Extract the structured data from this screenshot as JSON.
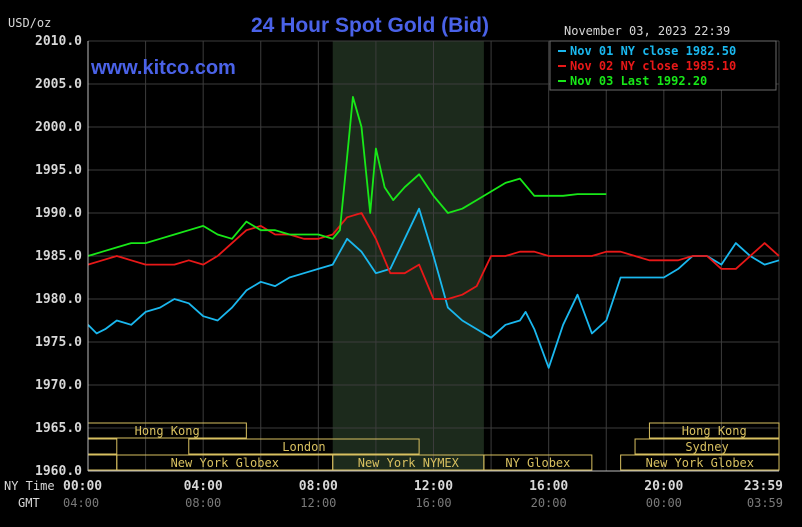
{
  "chart_data": {
    "type": "line",
    "title": "24 Hour Spot Gold (Bid)",
    "watermark": "www.kitco.com",
    "timestamp": "November 03, 2023 22:39",
    "ylabel": "USD/oz",
    "ylim": [
      1960,
      2010
    ],
    "xlim_hours": [
      0,
      24
    ],
    "y_ticks": [
      "2010.0",
      "2005.0",
      "2000.0",
      "1995.0",
      "1990.0",
      "1985.0",
      "1980.0",
      "1975.0",
      "1970.0",
      "1965.0",
      "1960.0"
    ],
    "x_tick_row_labels": [
      "NY Time",
      "GMT"
    ],
    "x_ticks_ny": [
      "00:00",
      "04:00",
      "08:00",
      "12:00",
      "16:00",
      "20:00",
      "23:59"
    ],
    "x_ticks_gmt": [
      "04:00",
      "08:00",
      "12:00",
      "16:00",
      "20:00",
      "00:00",
      "03:59"
    ],
    "grid": true,
    "shaded_range_hours": [
      8.5,
      13.75
    ],
    "legend_position": "top-right",
    "colors": {
      "background": "#000000",
      "grid": "#3c3c3c",
      "shade": "#1c2a1c",
      "title": "#4a62e8",
      "axis_text": "#d8d8d8",
      "session": "#d8c060"
    },
    "series": [
      {
        "name": "Nov 01 NY close 1982.50",
        "color": "#1ab8ef",
        "x": [
          0,
          0.3,
          0.6,
          1,
          1.5,
          2,
          2.5,
          3,
          3.5,
          4,
          4.5,
          5,
          5.5,
          6,
          6.5,
          7,
          7.5,
          8,
          8.5,
          9,
          9.5,
          10,
          10.5,
          11,
          11.5,
          12,
          12.5,
          13,
          13.5,
          14,
          14.5,
          15,
          15.2,
          15.5,
          16,
          16.5,
          17,
          17.5,
          18,
          18.5,
          19,
          19.5,
          20,
          20.5,
          21,
          21.5,
          22,
          22.5,
          23,
          23.5,
          24
        ],
        "y": [
          1977,
          1976,
          1976.5,
          1977.5,
          1977,
          1978.5,
          1979,
          1980,
          1979.5,
          1978,
          1977.5,
          1979,
          1981,
          1982,
          1981.5,
          1982.5,
          1983,
          1983.5,
          1984,
          1987,
          1985.5,
          1983,
          1983.5,
          1987,
          1990.5,
          1985,
          1979,
          1977.5,
          1976.5,
          1975.5,
          1977,
          1977.5,
          1978.5,
          1976.5,
          1972,
          1977,
          1980.5,
          1976,
          1977.5,
          1982.5,
          1982.5,
          1982.5,
          1982.5,
          1983.5,
          1985,
          1985,
          1984,
          1986.5,
          1985,
          1984,
          1984.5
        ]
      },
      {
        "name": "Nov 02 NY close 1985.10",
        "color": "#e81818",
        "x": [
          0,
          0.5,
          1,
          1.5,
          2,
          2.5,
          3,
          3.5,
          4,
          4.5,
          5,
          5.5,
          6,
          6.5,
          7,
          7.5,
          8,
          8.5,
          9,
          9.5,
          10,
          10.5,
          11,
          11.5,
          12,
          12.5,
          13,
          13.5,
          14,
          14.5,
          15,
          15.5,
          16,
          16.5,
          17,
          17.5,
          18,
          18.5,
          19,
          19.5,
          20,
          20.5,
          21,
          21.5,
          22,
          22.5,
          23,
          23.5,
          24
        ],
        "y": [
          1984,
          1984.5,
          1985,
          1984.5,
          1984,
          1984,
          1984,
          1984.5,
          1984,
          1985,
          1986.5,
          1988,
          1988.5,
          1987.5,
          1987.5,
          1987,
          1987,
          1987.5,
          1989.5,
          1990,
          1987,
          1983,
          1983,
          1984,
          1980,
          1980,
          1980.5,
          1981.5,
          1985,
          1985,
          1985.5,
          1985.5,
          1985,
          1985,
          1985,
          1985,
          1985.5,
          1985.5,
          1985,
          1984.5,
          1984.5,
          1984.5,
          1985,
          1985,
          1983.5,
          1983.5,
          1985,
          1986.5,
          1985
        ]
      },
      {
        "name": "Nov 03 Last 1992.20",
        "color": "#18e818",
        "x": [
          0,
          0.5,
          1,
          1.5,
          2,
          2.5,
          3,
          3.5,
          4,
          4.5,
          5,
          5.5,
          6,
          6.5,
          7,
          7.5,
          8,
          8.5,
          8.75,
          9,
          9.2,
          9.5,
          9.8,
          10,
          10.3,
          10.6,
          11,
          11.5,
          12,
          12.5,
          13,
          13.5,
          14,
          14.5,
          15,
          15.5,
          16,
          16.5,
          17,
          17.5,
          18
        ],
        "y": [
          1985,
          1985.5,
          1986,
          1986.5,
          1986.5,
          1987,
          1987.5,
          1988,
          1988.5,
          1987.5,
          1987,
          1989,
          1988,
          1988,
          1987.5,
          1987.5,
          1987.5,
          1987,
          1988,
          1996.5,
          2003.5,
          2000,
          1990,
          1997.5,
          1993,
          1991.5,
          1993,
          1994.5,
          1992,
          1990,
          1990.5,
          1991.5,
          1992.5,
          1993.5,
          1994,
          1992,
          1992,
          1992,
          1992.2,
          1992.2,
          1992.2
        ]
      }
    ],
    "sessions": [
      {
        "label": "Hong Kong",
        "start": 0,
        "end": 5.5,
        "row": 0
      },
      {
        "label": "Hong Kong",
        "start": 19.5,
        "end": 24,
        "row": 0
      },
      {
        "label": "",
        "start": 0,
        "end": 1,
        "row": 1
      },
      {
        "label": "London",
        "start": 3.5,
        "end": 11.5,
        "row": 1
      },
      {
        "label": "Sydney",
        "start": 19,
        "end": 24,
        "row": 1
      },
      {
        "label": "",
        "start": 0,
        "end": 1,
        "row": 2
      },
      {
        "label": "New York Globex",
        "start": 1,
        "end": 8.5,
        "row": 2
      },
      {
        "label": "New York NYMEX",
        "start": 8.5,
        "end": 13.75,
        "row": 2
      },
      {
        "label": "NY Globex",
        "start": 13.75,
        "end": 17.5,
        "row": 2
      },
      {
        "label": "New York Globex",
        "start": 18.5,
        "end": 24,
        "row": 2
      }
    ]
  }
}
